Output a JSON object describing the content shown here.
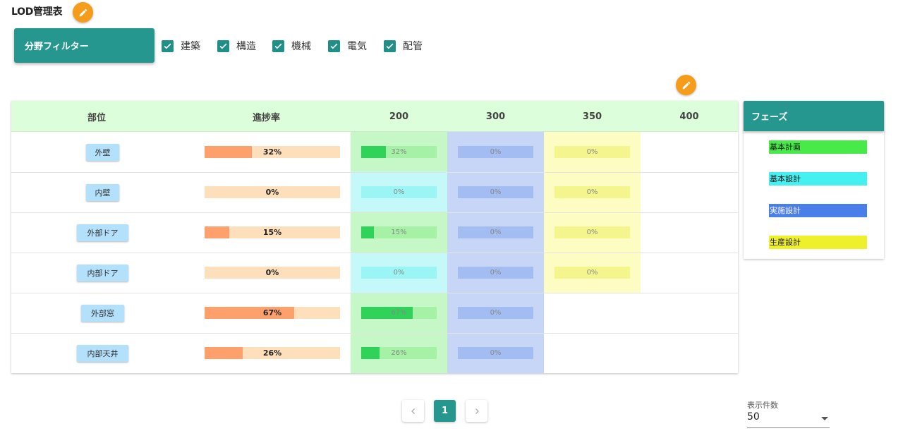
{
  "page": {
    "title": "LOD管理表"
  },
  "filter": {
    "button_label": "分野フィルター",
    "options": [
      {
        "label": "建築",
        "checked": true
      },
      {
        "label": "構造",
        "checked": true
      },
      {
        "label": "機械",
        "checked": true
      },
      {
        "label": "電気",
        "checked": true
      },
      {
        "label": "配管",
        "checked": true
      }
    ]
  },
  "table": {
    "headers": [
      "部位",
      "進捗率",
      "200",
      "300",
      "350",
      "400"
    ],
    "rows": [
      {
        "part": "外壁",
        "progress": 32,
        "progress_label": "32%",
        "p200": "32%",
        "p200_value": 32,
        "p300": "0%",
        "p350": "0%"
      },
      {
        "part": "内壁",
        "progress": 0,
        "progress_label": "0%",
        "p200": "0%",
        "p200_value": 0,
        "p300": "0%",
        "p350": "0%"
      },
      {
        "part": "外部ドア",
        "progress": 15,
        "progress_label": "15%",
        "p200": "15%",
        "p200_value": 15,
        "p300": "0%",
        "p350": "0%"
      },
      {
        "part": "内部ドア",
        "progress": 0,
        "progress_label": "0%",
        "p200": "0%",
        "p200_value": 0,
        "p300": "0%",
        "p350": "0%"
      },
      {
        "part": "外部窓",
        "progress": 67,
        "progress_label": "67%",
        "p200": "67%",
        "p200_value": 67,
        "p300": "0%"
      },
      {
        "part": "内部天井",
        "progress": 26,
        "progress_label": "26%",
        "p200": "26%",
        "p200_value": 26,
        "p300": "0%"
      }
    ]
  },
  "legend": {
    "title": "フェーズ",
    "items": [
      {
        "label": "基本計画",
        "color": "#48ea4a"
      },
      {
        "label": "基本設計",
        "color": "#44f0f0"
      },
      {
        "label": "実施設計",
        "color": "#4a7ee8"
      },
      {
        "label": "生産設計",
        "color": "#eff02c"
      }
    ]
  },
  "pagination": {
    "current": "1"
  },
  "per_page": {
    "label": "表示件数",
    "value": "50"
  },
  "colors": {
    "accent": "#25978f",
    "fab": "#f59c1a",
    "header_bg": "#dcfedb",
    "progress_track": "#fde0bb",
    "progress_fill": "#fda06c"
  }
}
